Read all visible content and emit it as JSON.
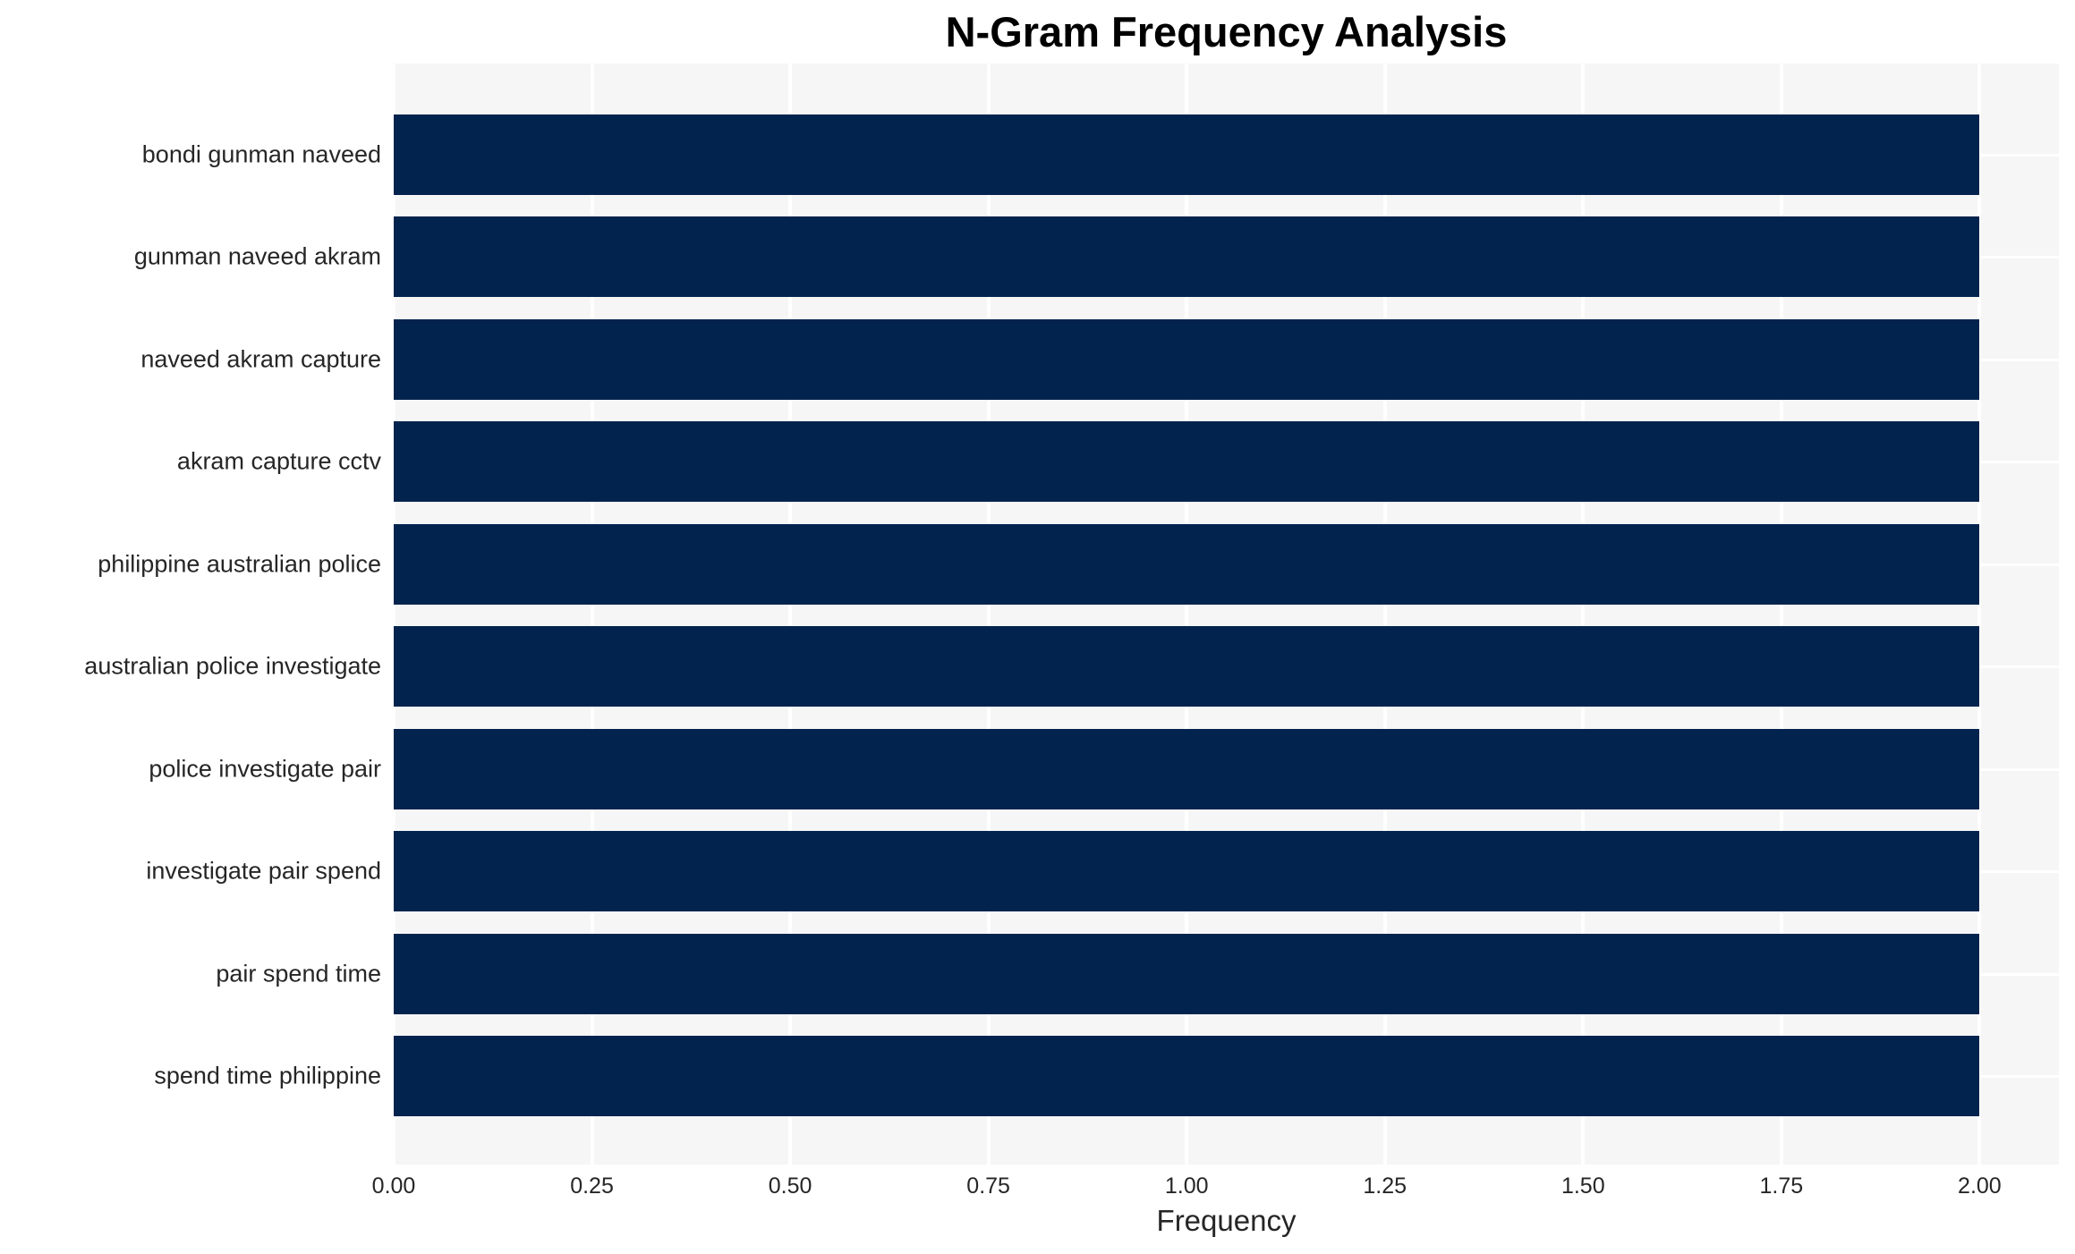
{
  "chart_data": {
    "type": "bar",
    "orientation": "horizontal",
    "title": "N-Gram Frequency Analysis",
    "xlabel": "Frequency",
    "ylabel": "",
    "categories": [
      "bondi gunman naveed",
      "gunman naveed akram",
      "naveed akram capture",
      "akram capture cctv",
      "philippine australian police",
      "australian police investigate",
      "police investigate pair",
      "investigate pair spend",
      "pair spend time",
      "spend time philippine"
    ],
    "values": [
      2.0,
      2.0,
      2.0,
      2.0,
      2.0,
      2.0,
      2.0,
      2.0,
      2.0,
      2.0
    ],
    "xlim": [
      0,
      2.1
    ],
    "xtick_values": [
      0.0,
      0.25,
      0.5,
      0.75,
      1.0,
      1.25,
      1.5,
      1.75,
      2.0
    ],
    "xtick_labels": [
      "0.00",
      "0.25",
      "0.50",
      "0.75",
      "1.00",
      "1.25",
      "1.50",
      "1.75",
      "2.00"
    ],
    "grid": true,
    "legend": false,
    "colors": {
      "bar": "#02234d",
      "plot_bg": "#f6f6f7",
      "grid": "#ffffff",
      "tick_text": "#262626",
      "title_text": "#000000"
    }
  }
}
